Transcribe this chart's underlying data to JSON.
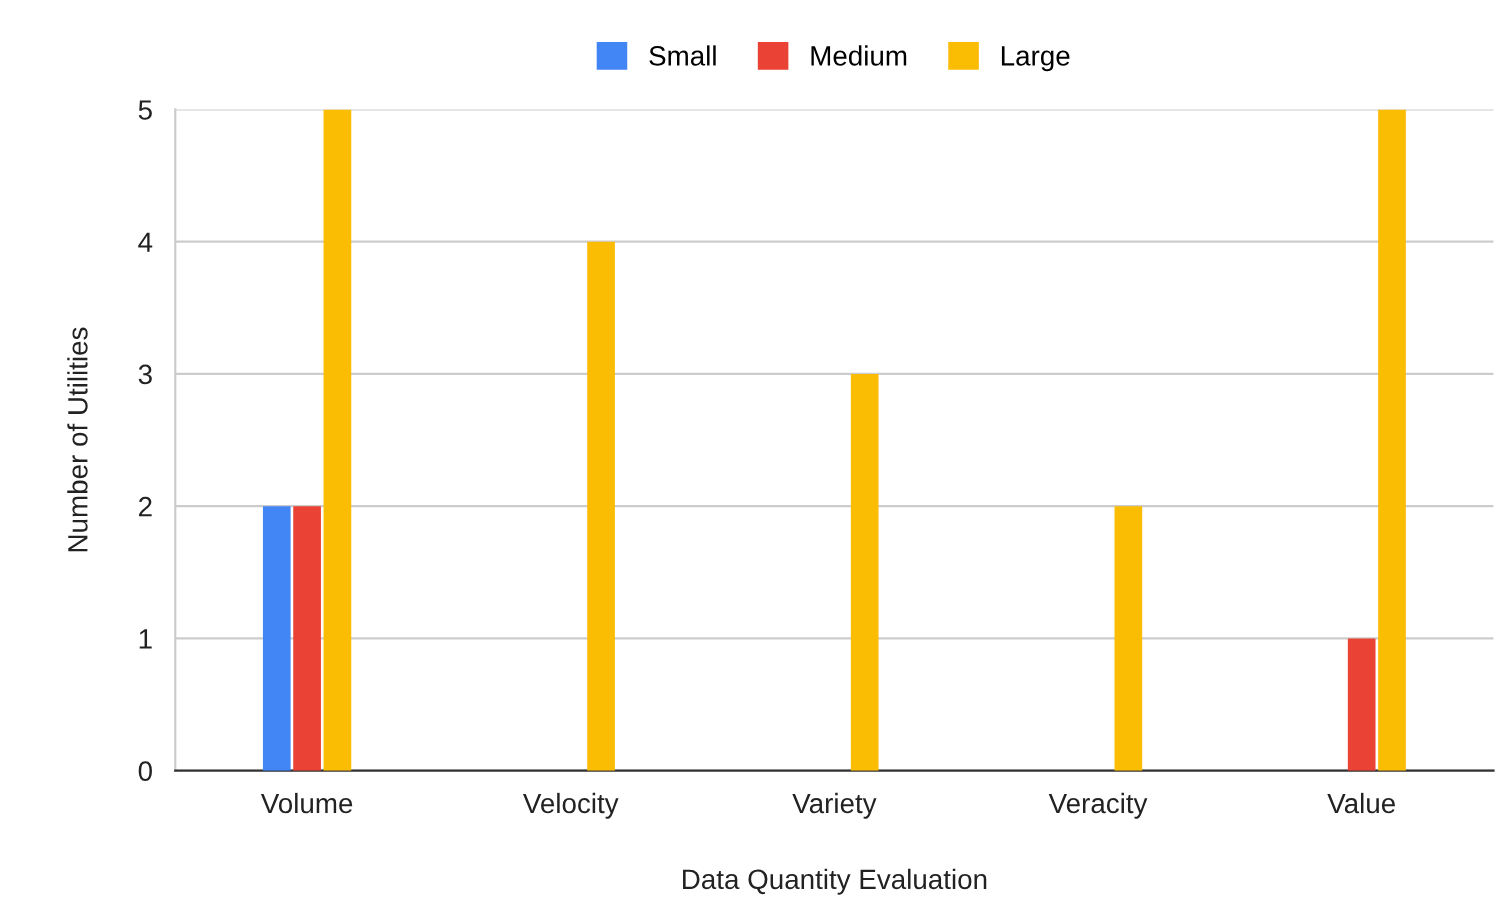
{
  "chart_data": {
    "type": "bar",
    "xlabel": "Data Quantity Evaluation",
    "ylabel": "Number of Utilities",
    "categories": [
      "Volume",
      "Velocity",
      "Variety",
      "Veracity",
      "Value"
    ],
    "series": [
      {
        "name": "Small",
        "color": "#4285f4",
        "values": [
          2,
          0,
          0,
          0,
          0
        ]
      },
      {
        "name": "Medium",
        "color": "#ea4335",
        "values": [
          2,
          0,
          0,
          0,
          1
        ]
      },
      {
        "name": "Large",
        "color": "#fbbc04",
        "values": [
          5,
          4,
          3,
          2,
          5
        ]
      }
    ],
    "ylim": [
      0,
      5
    ],
    "yticks": [
      0,
      1,
      2,
      3,
      4,
      5
    ],
    "grid": "y",
    "legend": "top"
  }
}
